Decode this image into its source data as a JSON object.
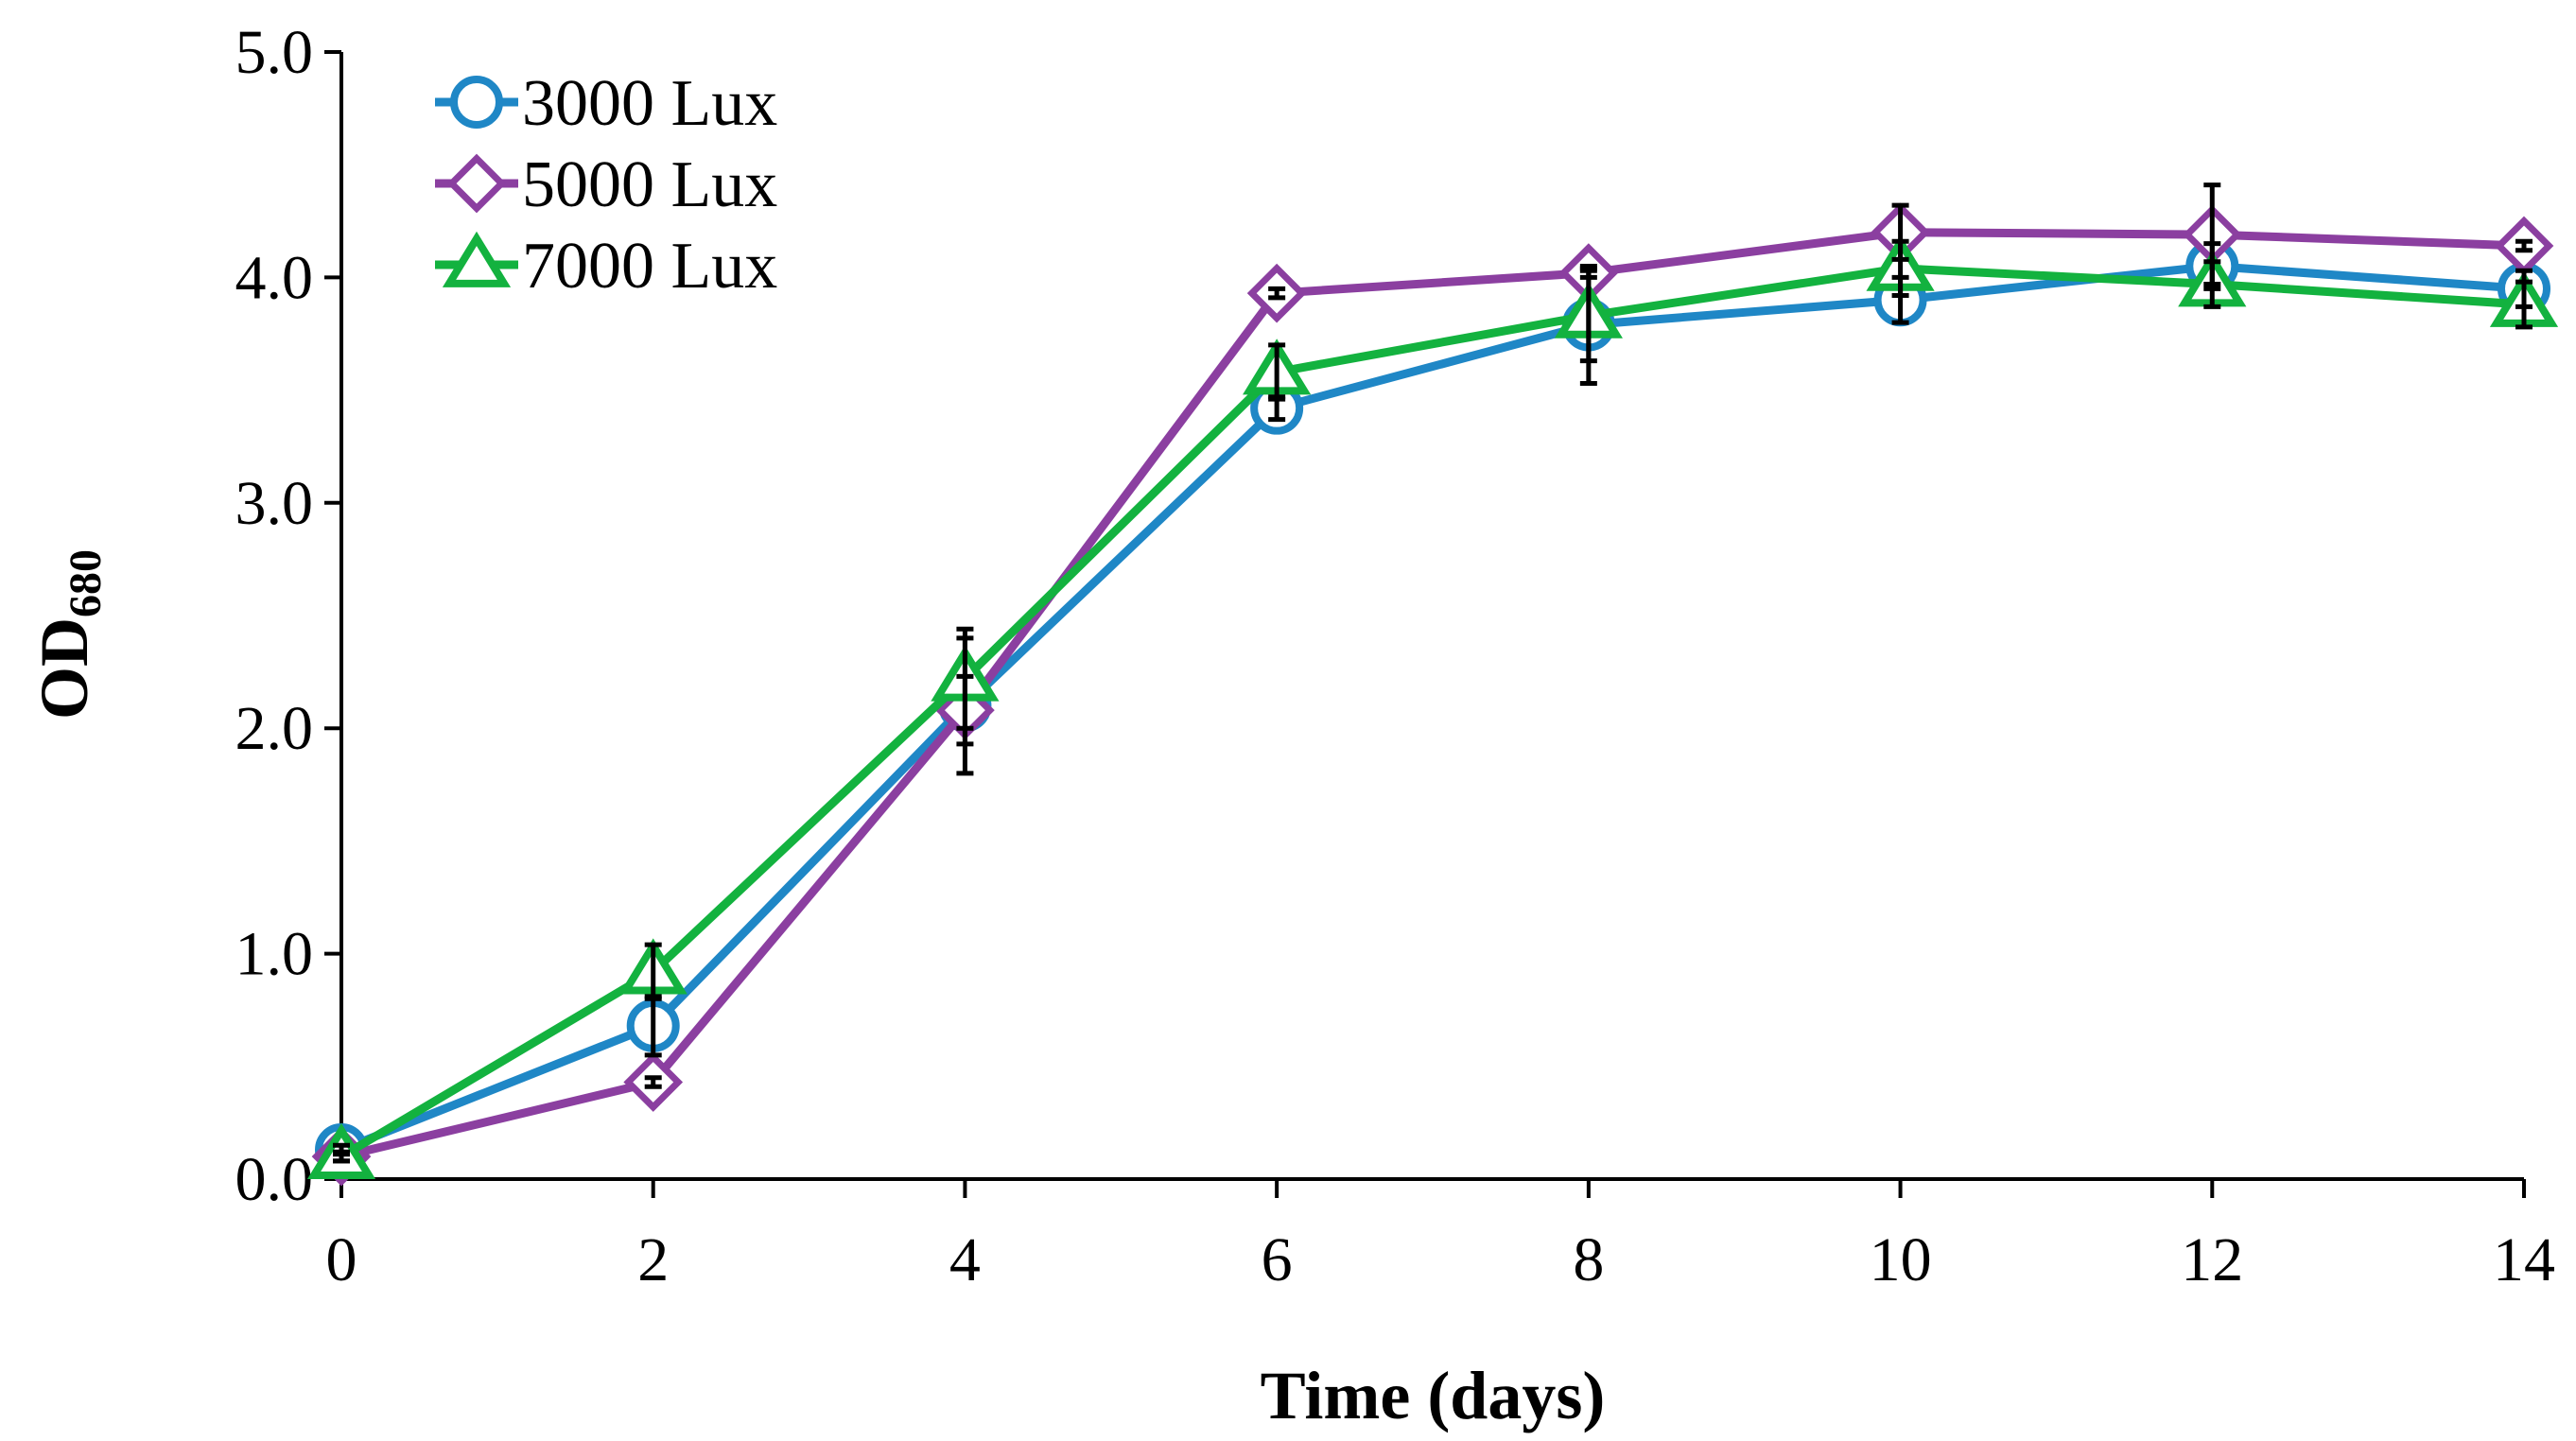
{
  "chart_data": {
    "type": "line",
    "title": "",
    "xlabel": "Time (days)",
    "ylabel": {
      "main": "OD",
      "subscript": "680"
    },
    "x": [
      0,
      2,
      4,
      6,
      8,
      10,
      12,
      14
    ],
    "xlim": [
      0,
      14
    ],
    "ylim": [
      0,
      5
    ],
    "xticks": [
      0,
      2,
      4,
      6,
      8,
      10,
      12,
      14
    ],
    "xtick_labels": [
      "0",
      "2",
      "4",
      "6",
      "8",
      "10",
      "12",
      "14"
    ],
    "yticks": [
      0,
      1,
      2,
      3,
      4,
      5
    ],
    "ytick_labels": [
      "0.0",
      "1.0",
      "2.0",
      "3.0",
      "4.0",
      "5.0"
    ],
    "grid": false,
    "legend_position": "top-left",
    "error_bar_color": "#000000",
    "series": [
      {
        "name": "3000 Lux",
        "color": "#1f87c6",
        "marker": "circle",
        "values": [
          0.13,
          0.68,
          2.1,
          3.42,
          3.79,
          3.9,
          4.05,
          3.95
        ],
        "errors": [
          0.02,
          0.13,
          0.3,
          0.05,
          0.26,
          0.1,
          0.1,
          0.08
        ]
      },
      {
        "name": "5000 Lux",
        "color": "#8b3fa0",
        "marker": "diamond",
        "values": [
          0.1,
          0.43,
          2.08,
          3.93,
          4.02,
          4.2,
          4.19,
          4.14
        ],
        "errors": [
          0.02,
          0.02,
          0.15,
          0.02,
          0.02,
          0.12,
          0.22,
          0.02
        ]
      },
      {
        "name": "7000 Lux",
        "color": "#13b23f",
        "marker": "triangle",
        "values": [
          0.1,
          0.92,
          2.22,
          3.58,
          3.83,
          4.04,
          3.97,
          3.88
        ],
        "errors": [
          0.02,
          0.12,
          0.22,
          0.12,
          0.2,
          0.12,
          0.1,
          0.1
        ]
      }
    ]
  }
}
